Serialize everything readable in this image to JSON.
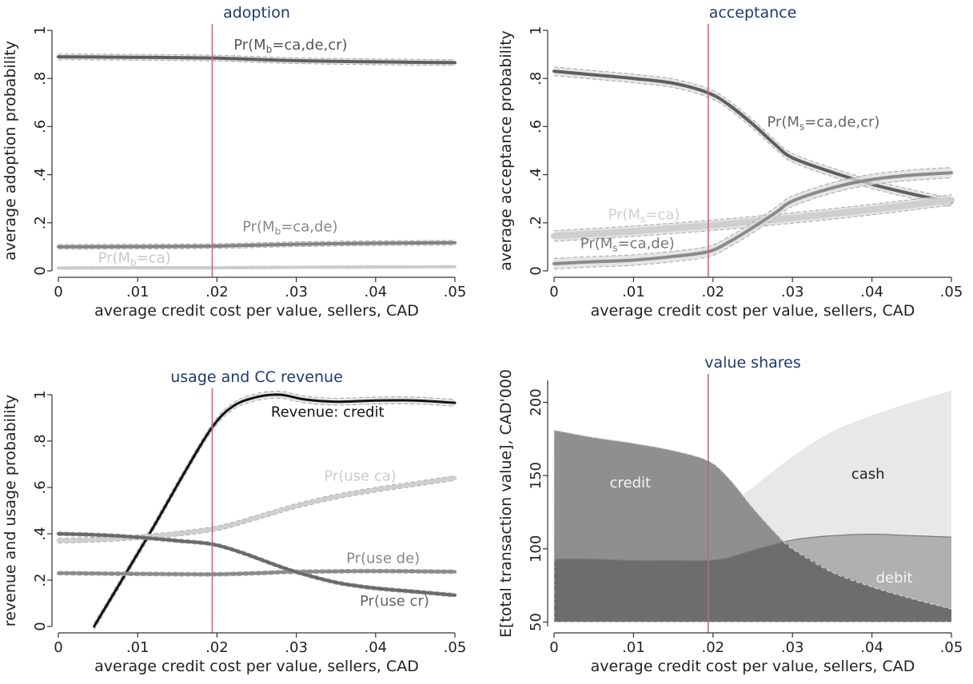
{
  "chart_data": [
    {
      "id": "adoption",
      "type": "line",
      "title": "adoption",
      "xlabel": "average credit cost per value, sellers, CAD",
      "ylabel": "average adoption probability",
      "xlim": [
        0,
        0.05
      ],
      "ylim": [
        0,
        1
      ],
      "xticks": [
        0,
        0.01,
        0.02,
        0.03,
        0.04,
        0.05
      ],
      "xtick_labels": [
        "0",
        ".01",
        ".02",
        ".03",
        ".04",
        ".05"
      ],
      "yticks": [
        0,
        0.2,
        0.4,
        0.6,
        0.8,
        1
      ],
      "ytick_labels": [
        "0",
        ".2",
        ".4",
        ".6",
        ".8",
        "1"
      ],
      "vline_x": 0.0194,
      "vline_color": "#d9608a",
      "series": [
        {
          "color": "#5f5f5f",
          "width": 4,
          "band": 0.012,
          "x": [
            0,
            0.01,
            0.0194,
            0.025,
            0.03,
            0.04,
            0.05
          ],
          "y": [
            0.89,
            0.888,
            0.885,
            0.879,
            0.874,
            0.869,
            0.866
          ]
        },
        {
          "color": "#828282",
          "width": 4,
          "band": 0.01,
          "x": [
            0,
            0.01,
            0.0194,
            0.025,
            0.03,
            0.04,
            0.05
          ],
          "y": [
            0.1,
            0.101,
            0.103,
            0.107,
            0.111,
            0.115,
            0.117
          ]
        },
        {
          "color": "#cccccc",
          "width": 4,
          "band": 0.005,
          "x": [
            0,
            0.01,
            0.0194,
            0.03,
            0.04,
            0.05
          ],
          "y": [
            0.012,
            0.013,
            0.013,
            0.015,
            0.016,
            0.017
          ]
        }
      ],
      "annotations": [
        {
          "base": "Pr(M",
          "sub": "b",
          "rest": "=ca,de,cr)",
          "x": 0.0221,
          "y": 0.92,
          "color": "#555555"
        },
        {
          "base": "Pr(M",
          "sub": "b",
          "rest": "=ca,de)",
          "x": 0.0232,
          "y": 0.165,
          "color": "#888888"
        },
        {
          "base": "Pr(M",
          "sub": "b",
          "rest": "=ca)",
          "x": 0.005,
          "y": 0.035,
          "color": "#c8c8c8"
        }
      ]
    },
    {
      "id": "acceptance",
      "type": "line",
      "title": "acceptance",
      "xlabel": "average credit cost per value, sellers, CAD",
      "ylabel": "average acceptance probability",
      "xlim": [
        0,
        0.05
      ],
      "ylim": [
        0,
        1
      ],
      "xticks": [
        0,
        0.01,
        0.02,
        0.03,
        0.04,
        0.05
      ],
      "xtick_labels": [
        "0",
        ".01",
        ".02",
        ".03",
        ".04",
        ".05"
      ],
      "yticks": [
        0,
        0.2,
        0.4,
        0.6,
        0.8,
        1
      ],
      "ytick_labels": [
        "0",
        ".2",
        ".4",
        ".6",
        ".8",
        "1"
      ],
      "vline_x": 0.0194,
      "vline_color": "#d9608a",
      "series": [
        {
          "color": "#5f5f5f",
          "width": 4,
          "band": 0.018,
          "x": [
            0,
            0.005,
            0.01,
            0.015,
            0.0194,
            0.022,
            0.025,
            0.028,
            0.03,
            0.035,
            0.04,
            0.045,
            0.05
          ],
          "y": [
            0.83,
            0.815,
            0.8,
            0.78,
            0.74,
            0.69,
            0.61,
            0.52,
            0.47,
            0.41,
            0.36,
            0.32,
            0.285
          ]
        },
        {
          "color": "#cfcfcf",
          "width": 8,
          "band": 0.022,
          "x": [
            0,
            0.01,
            0.02,
            0.03,
            0.04,
            0.05
          ],
          "y": [
            0.145,
            0.165,
            0.19,
            0.22,
            0.255,
            0.295
          ]
        },
        {
          "color": "#8a8a8a",
          "width": 4,
          "band": 0.022,
          "x": [
            0,
            0.005,
            0.01,
            0.015,
            0.0194,
            0.022,
            0.025,
            0.028,
            0.03,
            0.035,
            0.04,
            0.045,
            0.05
          ],
          "y": [
            0.03,
            0.038,
            0.045,
            0.06,
            0.08,
            0.12,
            0.18,
            0.245,
            0.29,
            0.345,
            0.38,
            0.398,
            0.408
          ]
        }
      ],
      "annotations": [
        {
          "base": "Pr(M",
          "sub": "s",
          "rest": "=ca,de,cr)",
          "x": 0.0268,
          "y": 0.6,
          "color": "#666666"
        },
        {
          "base": "Pr(M",
          "sub": "s",
          "rest": "=ca)",
          "x": 0.0068,
          "y": 0.215,
          "color": "#d0d0d0"
        },
        {
          "base": "Pr(M",
          "sub": "s",
          "rest": "=ca,de)",
          "x": 0.0033,
          "y": 0.095,
          "color": "#777777"
        }
      ]
    },
    {
      "id": "usage",
      "type": "line",
      "title": "usage and CC revenue",
      "xlabel": "average credit cost per value, sellers, CAD",
      "ylabel": "revenue and usage probability",
      "xlim": [
        0,
        0.05
      ],
      "ylim": [
        0,
        1
      ],
      "xticks": [
        0,
        0.01,
        0.02,
        0.03,
        0.04,
        0.05
      ],
      "xtick_labels": [
        "0",
        ".01",
        ".02",
        ".03",
        ".04",
        ".05"
      ],
      "yticks": [
        0,
        0.2,
        0.4,
        0.6,
        0.8,
        1
      ],
      "ytick_labels": [
        "0",
        ".2",
        ".4",
        ".6",
        ".8",
        "1"
      ],
      "vline_x": 0.0194,
      "vline_color": "#d9608a",
      "series": [
        {
          "color": "#111111",
          "width": 3,
          "band": 0.015,
          "x": [
            0.0045,
            0.008,
            0.012,
            0.016,
            0.0194,
            0.022,
            0.025,
            0.028,
            0.031,
            0.035,
            0.04,
            0.045,
            0.05
          ],
          "y": [
            0.0,
            0.2,
            0.43,
            0.67,
            0.86,
            0.95,
            0.99,
            1.0,
            0.98,
            0.97,
            0.975,
            0.975,
            0.965
          ]
        },
        {
          "color": "#cfcfcf",
          "width": 5,
          "band": 0.01,
          "x": [
            0,
            0.005,
            0.01,
            0.015,
            0.0194,
            0.022,
            0.025,
            0.03,
            0.035,
            0.04,
            0.045,
            0.05
          ],
          "y": [
            0.37,
            0.375,
            0.385,
            0.4,
            0.42,
            0.44,
            0.47,
            0.52,
            0.56,
            0.59,
            0.615,
            0.64
          ]
        },
        {
          "color": "#8a8a8a",
          "width": 4,
          "band": 0.008,
          "x": [
            0,
            0.01,
            0.0194,
            0.025,
            0.03,
            0.04,
            0.05
          ],
          "y": [
            0.23,
            0.227,
            0.225,
            0.23,
            0.236,
            0.239,
            0.236
          ]
        },
        {
          "color": "#6a6a6a",
          "width": 4,
          "band": 0.008,
          "x": [
            0,
            0.005,
            0.01,
            0.015,
            0.0194,
            0.023,
            0.027,
            0.03,
            0.035,
            0.04,
            0.045,
            0.05
          ],
          "y": [
            0.4,
            0.395,
            0.385,
            0.37,
            0.355,
            0.32,
            0.27,
            0.235,
            0.19,
            0.165,
            0.15,
            0.135
          ]
        }
      ],
      "annotations": [
        {
          "base": "Revenue: credit",
          "sub": "",
          "rest": "",
          "x": 0.0268,
          "y": 0.905,
          "color": "#111111"
        },
        {
          "base": "Pr(use ca)",
          "sub": "",
          "rest": "",
          "x": 0.0335,
          "y": 0.63,
          "color": "#cccccc"
        },
        {
          "base": "Pr(use de)",
          "sub": "",
          "rest": "",
          "x": 0.0363,
          "y": 0.275,
          "color": "#888888"
        },
        {
          "base": "Pr(use cr)",
          "sub": "",
          "rest": "",
          "x": 0.038,
          "y": 0.09,
          "color": "#666666"
        }
      ]
    },
    {
      "id": "value-shares",
      "type": "area",
      "title": "value shares",
      "xlabel": "average credit cost per value, sellers, CAD",
      "ylabel": "E[total transaction value], CAD'000",
      "xlim": [
        0,
        0.05
      ],
      "ylim": [
        47,
        215
      ],
      "baseline": 50,
      "xticks": [
        0,
        0.01,
        0.02,
        0.03,
        0.04,
        0.05
      ],
      "xtick_labels": [
        "0",
        ".01",
        ".02",
        ".03",
        ".04",
        ".05"
      ],
      "yticks": [
        50,
        100,
        150,
        200
      ],
      "ytick_labels": [
        "50",
        "100",
        "150",
        "200"
      ],
      "vline_x": 0.0194,
      "vline_color": "#b56a8a",
      "series": [
        {
          "name": "cash",
          "color": "#e8e8e8",
          "x": [
            0,
            0.005,
            0.01,
            0.015,
            0.0194,
            0.022,
            0.025,
            0.03,
            0.035,
            0.04,
            0.045,
            0.05
          ],
          "y": [
            103,
            106,
            110,
            116,
            123,
            130,
            142,
            163,
            180,
            191,
            200,
            208
          ]
        },
        {
          "name": "debit",
          "color": "#b0b0b0",
          "x": [
            0,
            0.005,
            0.01,
            0.015,
            0.0194,
            0.022,
            0.025,
            0.03,
            0.035,
            0.04,
            0.045,
            0.05
          ],
          "y": [
            93,
            93,
            92,
            92,
            92,
            94,
            99,
            106,
            109,
            110,
            109,
            108
          ]
        },
        {
          "name": "credit",
          "color": "#8f8f8f",
          "x": [
            0,
            0.005,
            0.01,
            0.015,
            0.0194,
            0.022,
            0.025,
            0.028,
            0.03,
            0.035,
            0.04,
            0.045,
            0.05
          ],
          "y": [
            181,
            176,
            172,
            167,
            160,
            148,
            128,
            110,
            100,
            84,
            74,
            66,
            59
          ]
        }
      ],
      "overlap_color": "#6d6d6d",
      "annotations": [
        {
          "base": "credit",
          "sub": "",
          "rest": "",
          "x": 0.007,
          "y": 142,
          "color": "#f4f4f4"
        },
        {
          "base": "cash",
          "sub": "",
          "rest": "",
          "x": 0.0374,
          "y": 148,
          "color": "#222222"
        },
        {
          "base": "debit",
          "sub": "",
          "rest": "",
          "x": 0.0405,
          "y": 77,
          "color": "#f4f4f4"
        }
      ]
    }
  ]
}
